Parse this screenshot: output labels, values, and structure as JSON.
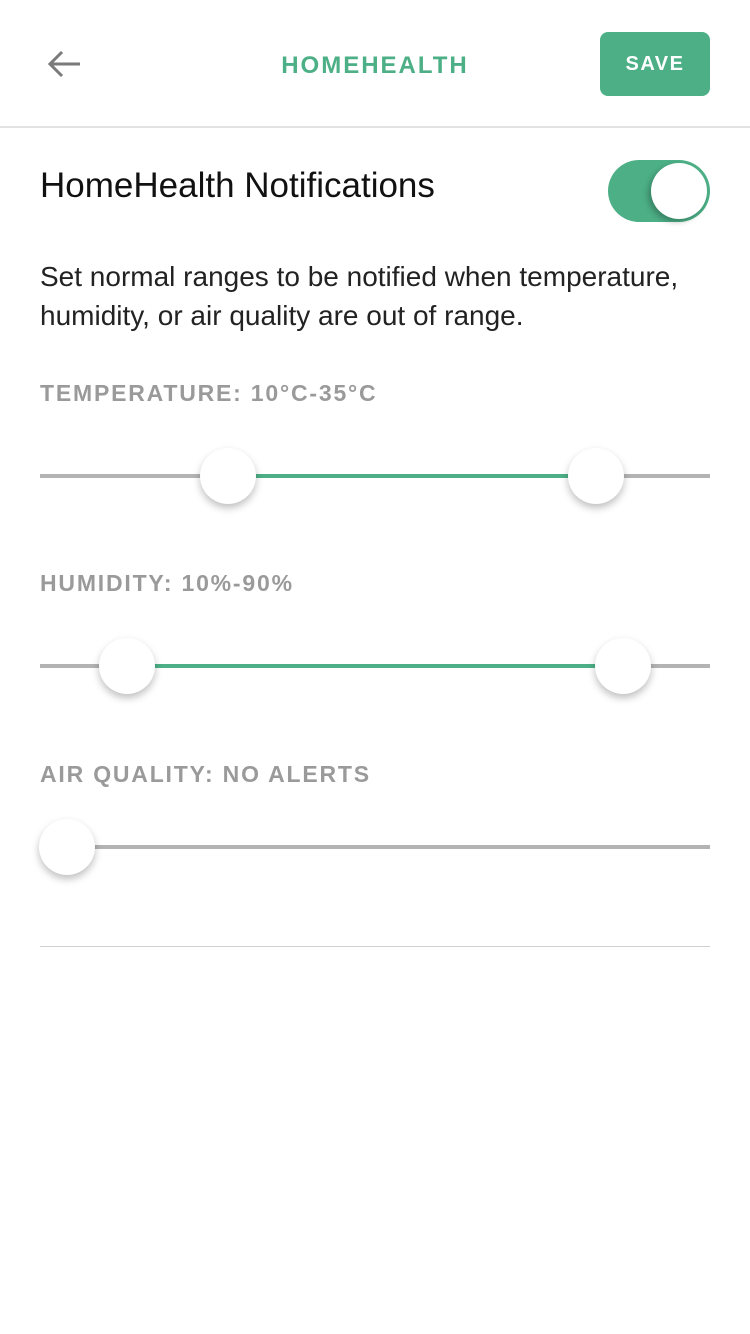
{
  "header": {
    "title": "HOMEHEALTH",
    "save_label": "SAVE",
    "back_icon": "arrow-left-icon"
  },
  "notifications": {
    "label": "HomeHealth Notifications",
    "enabled": true,
    "description": "Set normal ranges to be notified when temperature, humidity, or air quality are out of range."
  },
  "colors": {
    "accent": "#4caf86",
    "label": "#9a9a9a",
    "track": "#b3b3b3"
  },
  "sliders": [
    {
      "label": "TEMPERATURE: 10°C-35°C",
      "low_pct": 28,
      "high_pct": 83
    },
    {
      "label": "HUMIDITY: 10%-90%",
      "low_pct": 13,
      "high_pct": 87
    },
    {
      "label": "AIR QUALITY: NO ALERTS",
      "low_pct": 4
    }
  ]
}
